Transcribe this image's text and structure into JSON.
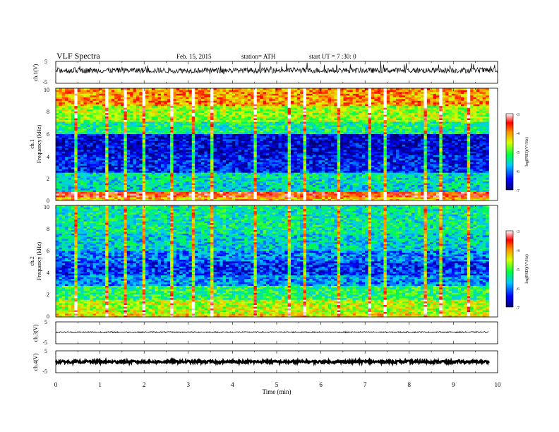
{
  "header": {
    "title": "VLF  Spectra",
    "date": "Feb. 15, 2015",
    "station": "station= ATH",
    "start": "start  UT  =   7  :30: 0"
  },
  "chart_data": [
    {
      "type": "line",
      "name": "ch1-waveform",
      "ylabel": "ch.1(V)",
      "ylim": [
        -5,
        5
      ],
      "yticks": [
        "5",
        "-5"
      ],
      "xlim": [
        0,
        10
      ],
      "baseline": 0.9,
      "noise": 0.25,
      "spikes": 0.6
    },
    {
      "type": "heatmap",
      "name": "ch1-spectrogram",
      "ylabel_top": "ch.1",
      "ylabel": "Frequency (kHz)",
      "ylim": [
        0,
        10
      ],
      "yticks": [
        "0",
        "2",
        "4",
        "6",
        "8",
        "10"
      ],
      "xlim": [
        0,
        9.8
      ],
      "colorbar": {
        "label": "log(PSD)(V²/Hz)",
        "range": [
          -7,
          -3
        ],
        "ticks": [
          "-3",
          "-4",
          "-5",
          "-6",
          "-7"
        ]
      },
      "bands": [
        {
          "f0": 0.0,
          "f1": 0.35,
          "level": -4.2
        },
        {
          "f0": 0.35,
          "f1": 0.8,
          "level": -3.6
        },
        {
          "f0": 0.8,
          "f1": 1.4,
          "level": -5.6
        },
        {
          "f0": 1.4,
          "f1": 2.5,
          "level": -5.5
        },
        {
          "f0": 2.5,
          "f1": 4.0,
          "level": -6.4
        },
        {
          "f0": 4.0,
          "f1": 5.9,
          "level": -6.6
        },
        {
          "f0": 5.9,
          "f1": 7.0,
          "level": -5.3
        },
        {
          "f0": 7.0,
          "f1": 8.5,
          "level": -4.7
        },
        {
          "f0": 8.5,
          "f1": 10.0,
          "level": -4.0
        }
      ],
      "events_min": [
        0.4,
        1.1,
        1.55,
        1.95,
        2.6,
        3.05,
        3.5,
        4.45,
        5.25,
        5.6,
        6.4,
        7.1,
        7.45,
        8.3,
        8.65,
        9.3
      ]
    },
    {
      "type": "heatmap",
      "name": "ch2-spectrogram",
      "ylabel_top": "ch.2",
      "ylabel": "Frequency (kHz)",
      "ylim": [
        0,
        10
      ],
      "yticks": [
        "0",
        "2",
        "4",
        "6",
        "8",
        "10"
      ],
      "xlim": [
        0,
        9.8
      ],
      "colorbar": {
        "label": "log(PSD)(V²/Hz)",
        "range": [
          -7,
          -3
        ],
        "ticks": [
          "-3",
          "-4",
          "-5",
          "-6",
          "-7"
        ]
      },
      "bands": [
        {
          "f0": 0.0,
          "f1": 0.3,
          "level": -4.3
        },
        {
          "f0": 0.3,
          "f1": 1.5,
          "level": -4.6
        },
        {
          "f0": 1.5,
          "f1": 2.8,
          "level": -5.2
        },
        {
          "f0": 2.8,
          "f1": 3.7,
          "level": -5.9
        },
        {
          "f0": 3.7,
          "f1": 5.0,
          "level": -6.3
        },
        {
          "f0": 5.0,
          "f1": 6.0,
          "level": -6.0
        },
        {
          "f0": 6.0,
          "f1": 7.5,
          "level": -5.6
        },
        {
          "f0": 7.5,
          "f1": 10.0,
          "level": -5.4
        }
      ],
      "events_min": [
        0.4,
        1.1,
        1.55,
        1.95,
        2.6,
        3.05,
        3.5,
        4.45,
        5.25,
        5.6,
        6.4,
        7.1,
        7.45,
        8.3,
        8.65,
        9.3
      ]
    },
    {
      "type": "line",
      "name": "ch3-waveform",
      "ylabel": "ch.3(V)",
      "ylim": [
        -5,
        5
      ],
      "yticks": [
        "5",
        "-5"
      ],
      "xlim": [
        0,
        9.8
      ],
      "baseline": 0.3,
      "noise": 0.06,
      "spikes": 0
    },
    {
      "type": "line",
      "name": "ch4-waveform",
      "ylabel": "ch.4(V)",
      "ylim": [
        -5,
        5
      ],
      "yticks": [
        "5",
        "-5"
      ],
      "xlim": [
        0,
        9.8
      ],
      "baseline": 0.0,
      "noise": 0.12,
      "spikes": 0,
      "xlabel": "Time  (min)",
      "xticks": [
        "0",
        "1",
        "2",
        "3",
        "4",
        "5",
        "6",
        "7",
        "8",
        "9",
        "10"
      ]
    }
  ]
}
